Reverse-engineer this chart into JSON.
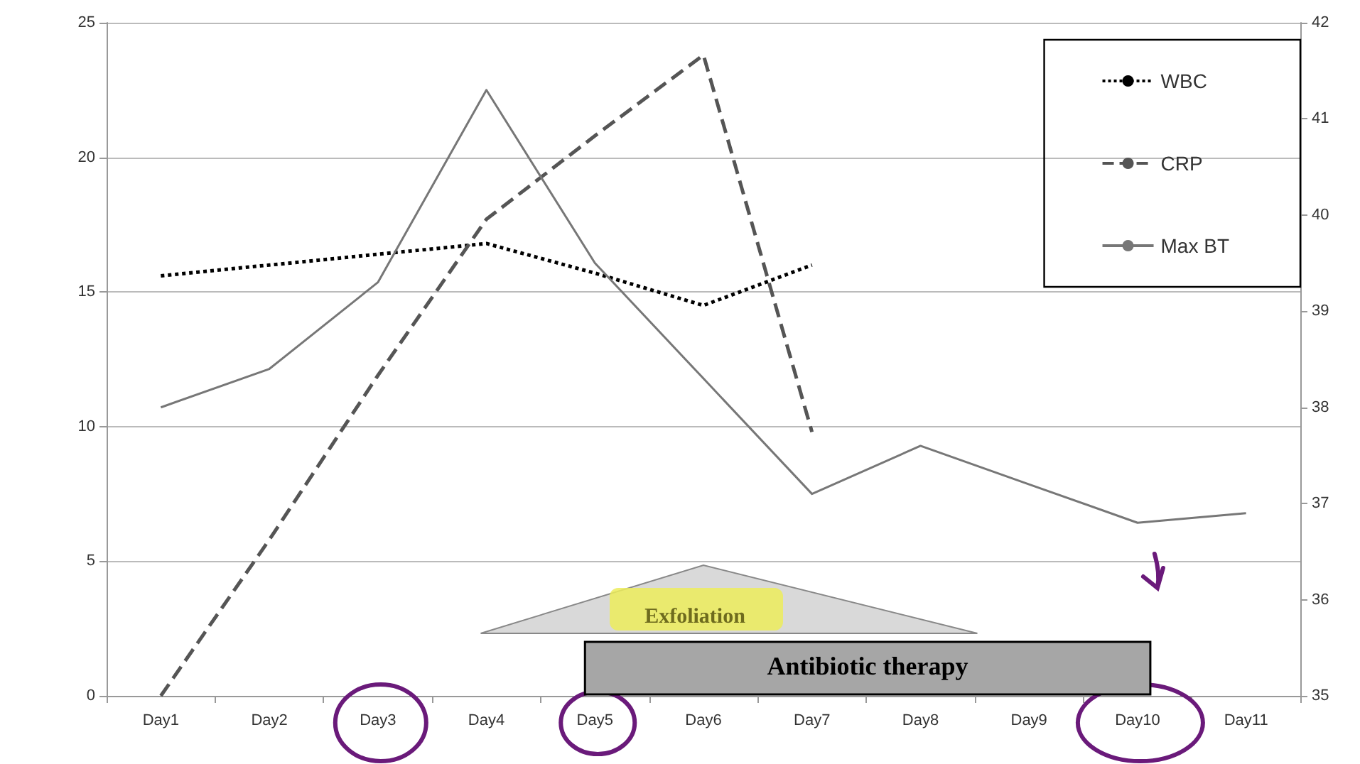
{
  "chart_data": {
    "type": "line",
    "categories": [
      "Day1",
      "Day2",
      "Day3",
      "Day4",
      "Day5",
      "Day6",
      "Day7",
      "Day8",
      "Day9",
      "Day10",
      "Day11"
    ],
    "series": [
      {
        "name": "WBC",
        "color": "#000000",
        "line_style": "dotted",
        "values": [
          15.6,
          16.0,
          16.4,
          16.8,
          15.7,
          14.5,
          16.0,
          null,
          null,
          null,
          null
        ]
      },
      {
        "name": "CRP",
        "color": "#555555",
        "line_style": "dashed",
        "values": [
          0,
          5.8,
          11.9,
          17.7,
          20.8,
          23.8,
          9.8,
          null,
          null,
          null,
          null
        ]
      },
      {
        "name": "Max BT",
        "color": "#777777",
        "line_style": "solid",
        "axis": "y2",
        "values": [
          38.0,
          38.4,
          39.3,
          41.3,
          39.5,
          38.3,
          37.1,
          37.6,
          37.2,
          36.8,
          36.9
        ]
      }
    ],
    "ylim": [
      0,
      25
    ],
    "yticks": [
      0,
      5,
      10,
      15,
      20,
      25
    ],
    "y2lim": [
      35,
      42
    ],
    "y2ticks": [
      35,
      36,
      37,
      38,
      39,
      40,
      41,
      42
    ],
    "grid": "y",
    "legend": "top right",
    "marker": "none",
    "annotations": [
      "Exfoliation",
      "Antibiotic therapy"
    ]
  }
}
